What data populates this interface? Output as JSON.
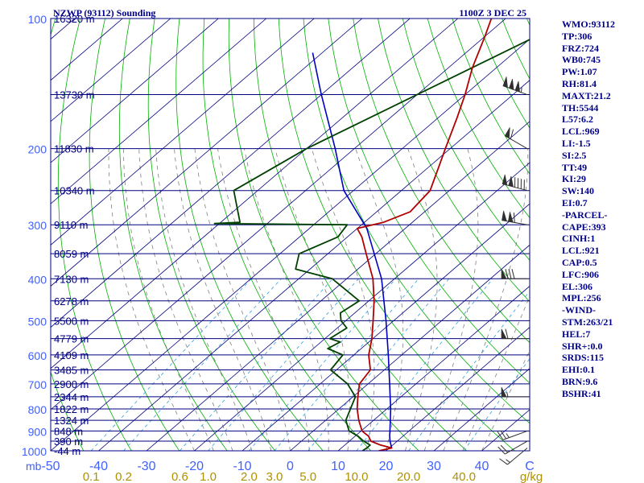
{
  "header": {
    "title": "NZWP (93112) Sounding",
    "time": "1100Z  3 DEC 25"
  },
  "params": [
    "WMO:93112",
    "TP:306",
    "FRZ:724",
    "WB0:745",
    "PW:1.07",
    "RH:81.4",
    "MAXT:21.2",
    "TH:5544",
    "L57:6.2",
    "LCL:969",
    "LI:-1.5",
    "SI:2.5",
    "TT:49",
    "KI:29",
    "SW:140",
    "EI:0.7",
    "-PARCEL-",
    "CAPE:393",
    "CINH:1",
    "LCL:921",
    "CAP:0.5",
    "LFC:906",
    "EL:306",
    "MPL:256",
    "-WIND-",
    "STM:263/21",
    "HEL:7",
    "SHR+:0.0",
    "SRDS:115",
    "EHI:0.1",
    "BRN:9.6",
    "BSHR:41"
  ],
  "colors": {
    "border": "#000080",
    "isobar": "#000080",
    "isotherm": "#000080",
    "dry_adiabat": "#00b000",
    "moist_adiabat": "#808080",
    "mixing_ratio": "#30a0e0",
    "temperature": "#b00000",
    "dewpoint": "#004000",
    "parcel": "#0000c0",
    "wind": "#303030",
    "height_text": "#000080",
    "pressure_text": "#4060ff",
    "temp_axis_text": "#4060ff",
    "mixratio_text": "#b09000"
  },
  "chart_data": {
    "type": "skew-t log-p sounding",
    "y_axis_unit": "mb",
    "x_axis_unit": "C",
    "mixing_ratio_unit": "g/kg",
    "pressure_range": [
      1000,
      100
    ],
    "temperature_range": [
      -50,
      50
    ],
    "pressure_levels": [
      {
        "p": 100,
        "label": "100",
        "height": "16320 m"
      },
      {
        "p": 150,
        "label": "",
        "height": "13730 m"
      },
      {
        "p": 200,
        "label": "200",
        "height": "11830 m"
      },
      {
        "p": 250,
        "label": "",
        "height": "10340 m"
      },
      {
        "p": 300,
        "label": "300",
        "height": "9110 m"
      },
      {
        "p": 350,
        "label": "",
        "height": "8059 m"
      },
      {
        "p": 400,
        "label": "400",
        "height": "7130 m"
      },
      {
        "p": 450,
        "label": "",
        "height": "6278 m"
      },
      {
        "p": 500,
        "label": "500",
        "height": "5500 m"
      },
      {
        "p": 550,
        "label": "",
        "height": "4779 m"
      },
      {
        "p": 600,
        "label": "600",
        "height": "4109 m"
      },
      {
        "p": 650,
        "label": "",
        "height": "3485 m"
      },
      {
        "p": 700,
        "label": "700",
        "height": "2900 m"
      },
      {
        "p": 750,
        "label": "",
        "height": "2344 m"
      },
      {
        "p": 800,
        "label": "800",
        "height": "1822 m"
      },
      {
        "p": 850,
        "label": "",
        "height": "1324 m"
      },
      {
        "p": 900,
        "label": "900",
        "height": "848 m"
      },
      {
        "p": 950,
        "label": "",
        "height": "390 m"
      },
      {
        "p": 1000,
        "label": "1000",
        "height": "-44 m"
      }
    ],
    "temperature_ticks": [
      {
        "v": -50,
        "label": "-50"
      },
      {
        "v": -40,
        "label": "-40"
      },
      {
        "v": -30,
        "label": "-30"
      },
      {
        "v": -20,
        "label": "-20"
      },
      {
        "v": -10,
        "label": "-10"
      },
      {
        "v": 0,
        "label": "0"
      },
      {
        "v": 10,
        "label": "10"
      },
      {
        "v": 20,
        "label": "20"
      },
      {
        "v": 30,
        "label": "30"
      },
      {
        "v": 40,
        "label": "40"
      },
      {
        "v": 50,
        "label": "C"
      }
    ],
    "mixing_ratio_labels": [
      {
        "w": 0.1,
        "label": "0.1"
      },
      {
        "w": 0.2,
        "label": "0.2"
      },
      {
        "w": 0.6,
        "label": "0.6"
      },
      {
        "w": 1.0,
        "label": "1.0"
      },
      {
        "w": 2.0,
        "label": "2.0"
      },
      {
        "w": 3.0,
        "label": "3.0"
      },
      {
        "w": 5.0,
        "label": "5.0"
      },
      {
        "w": 10.0,
        "label": "10.0"
      },
      {
        "w": 20.0,
        "label": "20.0"
      },
      {
        "w": 40.0,
        "label": "40.0"
      },
      {
        "w": 70.0,
        "label": "g/kg"
      }
    ],
    "temperature_profile": [
      [
        1000,
        18.5
      ],
      [
        985,
        20.5
      ],
      [
        970,
        17.5
      ],
      [
        950,
        14.5
      ],
      [
        925,
        12.8
      ],
      [
        900,
        10.2
      ],
      [
        850,
        6.9
      ],
      [
        800,
        3.8
      ],
      [
        750,
        1.0
      ],
      [
        700,
        -1.8
      ],
      [
        650,
        -2.9
      ],
      [
        600,
        -6.9
      ],
      [
        550,
        -10.2
      ],
      [
        500,
        -14.3
      ],
      [
        450,
        -18.9
      ],
      [
        400,
        -24.5
      ],
      [
        350,
        -32.0
      ],
      [
        320,
        -37.0
      ],
      [
        306,
        -40.0
      ],
      [
        296,
        -36.0
      ],
      [
        280,
        -33.0
      ],
      [
        250,
        -34.0
      ],
      [
        220,
        -38.0
      ],
      [
        200,
        -41.0
      ],
      [
        170,
        -46.0
      ],
      [
        150,
        -50.0
      ],
      [
        130,
        -55.0
      ],
      [
        110,
        -60.0
      ],
      [
        100,
        -63.0
      ]
    ],
    "dewpoint_profile": [
      [
        1000,
        15.1
      ],
      [
        985,
        15.3
      ],
      [
        970,
        15.3
      ],
      [
        950,
        13.0
      ],
      [
        925,
        10.6
      ],
      [
        900,
        7.5
      ],
      [
        850,
        4.2
      ],
      [
        800,
        2.4
      ],
      [
        750,
        0.5
      ],
      [
        700,
        -4.3
      ],
      [
        650,
        -11.2
      ],
      [
        600,
        -12.3
      ],
      [
        580,
        -17.0
      ],
      [
        560,
        -16.0
      ],
      [
        550,
        -19.0
      ],
      [
        520,
        -18.0
      ],
      [
        500,
        -21.0
      ],
      [
        480,
        -23.0
      ],
      [
        450,
        -22.0
      ],
      [
        400,
        -33.0
      ],
      [
        380,
        -43.0
      ],
      [
        350,
        -46.0
      ],
      [
        320,
        -42.0
      ],
      [
        300,
        -43.0
      ],
      [
        298,
        -71.0
      ],
      [
        296,
        -66.0
      ],
      [
        250,
        -75.0
      ],
      [
        200,
        -70.0
      ],
      [
        100,
        -46.0
      ]
    ],
    "parcel_profile": [
      [
        985,
        20.5
      ],
      [
        950,
        18.5
      ],
      [
        921,
        17.0
      ],
      [
        906,
        16.3
      ],
      [
        850,
        13.5
      ],
      [
        800,
        10.8
      ],
      [
        700,
        4.5
      ],
      [
        600,
        -2.8
      ],
      [
        500,
        -11.6
      ],
      [
        400,
        -22.7
      ],
      [
        306,
        -38.0
      ],
      [
        250,
        -52.0
      ],
      [
        200,
        -64.0
      ],
      [
        150,
        -80.0
      ],
      [
        120,
        -92.0
      ]
    ],
    "wind_barbs": [
      {
        "p": 150,
        "dir": 290,
        "speed_kt": 155
      },
      {
        "p": 200,
        "dir": 300,
        "speed_kt": 60
      },
      {
        "p": 250,
        "dir": 285,
        "speed_kt": 140
      },
      {
        "p": 300,
        "dir": 280,
        "speed_kt": 110
      },
      {
        "p": 400,
        "dir": 270,
        "speed_kt": 80
      },
      {
        "p": 550,
        "dir": 270,
        "speed_kt": 60
      },
      {
        "p": 750,
        "dir": 270,
        "speed_kt": 55
      },
      {
        "p": 900,
        "dir": 250,
        "speed_kt": 25
      },
      {
        "p": 950,
        "dir": 240,
        "speed_kt": 20
      },
      {
        "p": 985,
        "dir": 230,
        "speed_kt": 15
      }
    ]
  }
}
